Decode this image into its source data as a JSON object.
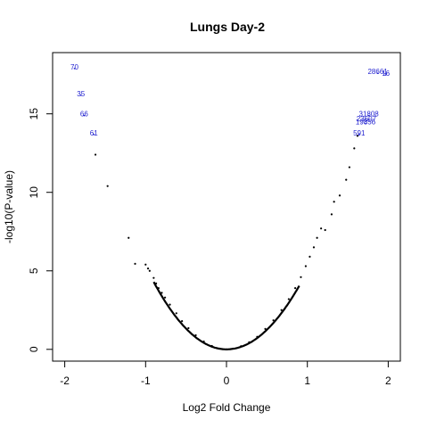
{
  "chart_data": {
    "type": "scatter",
    "title": "Lungs Day-2",
    "xlabel": "Log2 Fold Change",
    "ylabel": "-log10(P-value)",
    "xlim": [
      -2.15,
      2.15
    ],
    "ylim": [
      -0.75,
      18.9
    ],
    "x_ticks": [
      -2,
      -1,
      0,
      1,
      2
    ],
    "x_tick_labels": [
      "-2",
      "-1",
      "0",
      "1",
      "2"
    ],
    "y_ticks": [
      0,
      5,
      10,
      15
    ],
    "y_tick_labels": [
      "0",
      "5",
      "10",
      "15"
    ],
    "grid": false,
    "legend": "none",
    "marker_color": "#000000",
    "label_color": "#1f1fcf",
    "series": [
      {
        "values": [
          {
            "x": -1.62,
            "y": 12.4
          },
          {
            "x": -1.47,
            "y": 10.4
          },
          {
            "x": -1.21,
            "y": 7.1
          },
          {
            "x": -1.13,
            "y": 5.45
          },
          {
            "x": -1.0,
            "y": 5.4
          },
          {
            "x": -0.97,
            "y": 5.15
          },
          {
            "x": -0.95,
            "y": 5.0
          },
          {
            "x": -0.9,
            "y": 4.55
          },
          {
            "x": -0.87,
            "y": 4.2
          },
          {
            "x": -0.84,
            "y": 3.9
          },
          {
            "x": -0.8,
            "y": 3.6
          },
          {
            "x": -0.76,
            "y": 3.3
          },
          {
            "x": -0.7,
            "y": 2.85
          },
          {
            "x": -0.62,
            "y": 2.3
          },
          {
            "x": -0.55,
            "y": 1.8
          },
          {
            "x": -0.47,
            "y": 1.35
          },
          {
            "x": -0.38,
            "y": 0.9
          },
          {
            "x": -0.28,
            "y": 0.5
          },
          {
            "x": -0.18,
            "y": 0.22
          },
          {
            "x": -0.08,
            "y": 0.05
          },
          {
            "x": 0.0,
            "y": 0.0
          },
          {
            "x": 0.08,
            "y": 0.05
          },
          {
            "x": 0.18,
            "y": 0.2
          },
          {
            "x": 0.28,
            "y": 0.45
          },
          {
            "x": 0.38,
            "y": 0.8
          },
          {
            "x": 0.48,
            "y": 1.3
          },
          {
            "x": 0.58,
            "y": 1.85
          },
          {
            "x": 0.68,
            "y": 2.5
          },
          {
            "x": 0.77,
            "y": 3.2
          },
          {
            "x": 0.85,
            "y": 3.9
          },
          {
            "x": 0.92,
            "y": 4.6
          },
          {
            "x": 0.98,
            "y": 5.3
          },
          {
            "x": 1.03,
            "y": 5.9
          },
          {
            "x": 1.08,
            "y": 6.5
          },
          {
            "x": 1.12,
            "y": 7.1
          },
          {
            "x": 1.17,
            "y": 7.7
          },
          {
            "x": 1.22,
            "y": 7.6
          },
          {
            "x": 1.3,
            "y": 8.6
          },
          {
            "x": 1.33,
            "y": 9.4
          },
          {
            "x": 1.4,
            "y": 9.8
          },
          {
            "x": 1.48,
            "y": 10.8
          },
          {
            "x": 1.52,
            "y": 11.6
          },
          {
            "x": 1.58,
            "y": 12.8
          },
          {
            "x": 1.62,
            "y": 13.6
          }
        ]
      }
    ],
    "labeled_points": [
      {
        "label": "70",
        "x": -1.88,
        "y": 18.0
      },
      {
        "label": "35",
        "x": -1.8,
        "y": 16.3
      },
      {
        "label": "66",
        "x": -1.76,
        "y": 15.0
      },
      {
        "label": "61",
        "x": -1.64,
        "y": 13.8
      },
      {
        "label": "28661",
        "x": 1.87,
        "y": 17.7
      },
      {
        "label": "16",
        "x": 1.97,
        "y": 17.6
      },
      {
        "label": "31808",
        "x": 1.76,
        "y": 15.0
      },
      {
        "label": "23607",
        "x": 1.73,
        "y": 14.7
      },
      {
        "label": "19856",
        "x": 1.72,
        "y": 14.5
      },
      {
        "label": "591",
        "x": 1.64,
        "y": 13.8
      }
    ]
  }
}
